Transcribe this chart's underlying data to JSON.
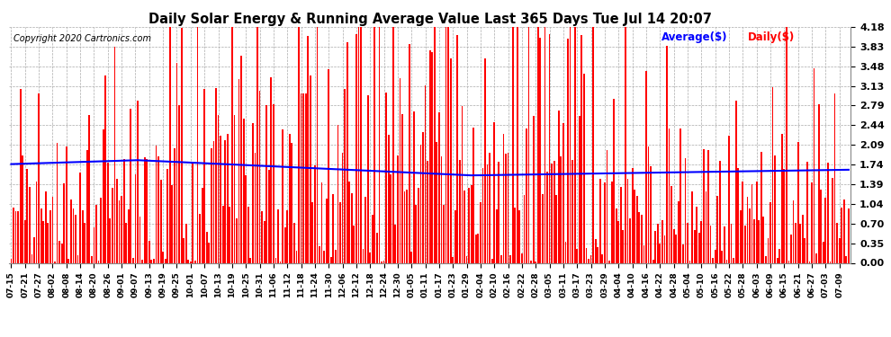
{
  "title": "Daily Solar Energy & Running Average Value Last 365 Days Tue Jul 14 20:07",
  "copyright": "Copyright 2020 Cartronics.com",
  "legend_avg": "Average($)",
  "legend_daily": "Daily($)",
  "bar_color": "#FF0000",
  "avg_color": "#0000FF",
  "background_color": "#FFFFFF",
  "yticks": [
    0.0,
    0.35,
    0.7,
    1.04,
    1.39,
    1.74,
    2.09,
    2.44,
    2.79,
    3.13,
    3.48,
    3.83,
    4.18
  ],
  "ylim": [
    0.0,
    4.18
  ],
  "x_labels": [
    "07-15",
    "07-21",
    "07-27",
    "08-02",
    "08-08",
    "08-14",
    "08-20",
    "08-26",
    "09-01",
    "09-07",
    "09-13",
    "09-19",
    "09-25",
    "10-01",
    "10-07",
    "10-13",
    "10-19",
    "10-25",
    "10-31",
    "11-06",
    "11-12",
    "11-18",
    "11-24",
    "11-30",
    "12-06",
    "12-12",
    "12-18",
    "12-24",
    "12-30",
    "01-05",
    "01-11",
    "01-17",
    "01-23",
    "01-29",
    "02-04",
    "02-10",
    "02-16",
    "02-22",
    "02-28",
    "03-05",
    "03-11",
    "03-17",
    "03-23",
    "03-29",
    "04-04",
    "04-10",
    "04-16",
    "04-22",
    "04-28",
    "05-04",
    "05-10",
    "05-16",
    "05-22",
    "05-28",
    "06-03",
    "06-09",
    "06-15",
    "06-21",
    "06-27",
    "07-03",
    "07-09"
  ]
}
